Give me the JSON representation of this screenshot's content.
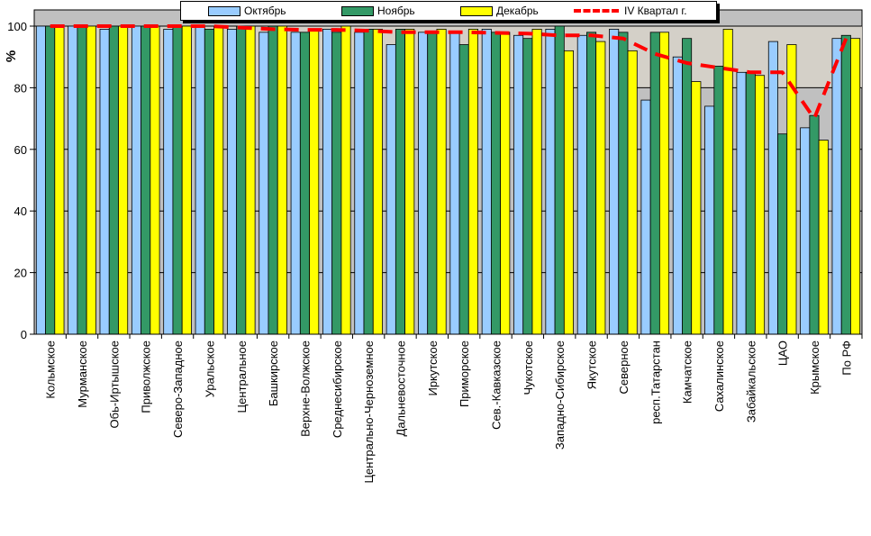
{
  "chart_data": {
    "type": "bar",
    "title": "",
    "xlabel": "",
    "ylabel": "%",
    "ylim": [
      0,
      100
    ],
    "yticks": [
      0,
      20,
      40,
      60,
      80,
      100
    ],
    "grid": true,
    "legend_position": "top",
    "categories": [
      "Кольмское",
      "Мурманское",
      "Обь-Иртышское",
      "Приволжское",
      "Северо-Западное",
      "Уральское",
      "Центральное",
      "Башкирское",
      "Верхне-Волжское",
      "Среднесибирское",
      "Центрально-Черноземное",
      "Дальневосточное",
      "Иркутское",
      "Приморское",
      "Сев.-Кавказское",
      "Чукотское",
      "Западно-Сибирское",
      "Якутское",
      "Северное",
      "респ.Татарстан",
      "Камчатское",
      "Сахалинское",
      "Забайкальское",
      "ЦАО",
      "Крымское",
      "По РФ"
    ],
    "series": [
      {
        "name": "Октябрь",
        "kind": "bar",
        "color": "#99ccff",
        "values": [
          100,
          100,
          99,
          100,
          99,
          100,
          99,
          98,
          98,
          99,
          98,
          94,
          98,
          98,
          99,
          97,
          99,
          97,
          99,
          76,
          90,
          74,
          85,
          95,
          67,
          96
        ]
      },
      {
        "name": "Ноябрь",
        "kind": "bar",
        "color": "#339966",
        "values": [
          100,
          100,
          100,
          100,
          100,
          99,
          100,
          100,
          98,
          98,
          99,
          99,
          98,
          94,
          98,
          96,
          100,
          98,
          98,
          98,
          96,
          87,
          85,
          65,
          71,
          97
        ]
      },
      {
        "name": "Декабрь",
        "kind": "bar",
        "color": "#ffff00",
        "values": [
          100,
          100,
          100,
          100,
          100,
          100,
          100,
          100,
          99,
          100,
          99,
          99,
          99,
          99,
          98,
          99,
          92,
          95,
          92,
          98,
          82,
          99,
          84,
          94,
          63,
          96
        ]
      },
      {
        "name": "IV Квартал г.",
        "kind": "line",
        "color": "#ff0000",
        "values": [
          100,
          100,
          100,
          100,
          100,
          100,
          99.5,
          99,
          98.8,
          98.8,
          98.5,
          98,
          98,
          98,
          97.8,
          97.6,
          97,
          97,
          96,
          91,
          88,
          86.5,
          85,
          85,
          70,
          96
        ]
      }
    ]
  }
}
